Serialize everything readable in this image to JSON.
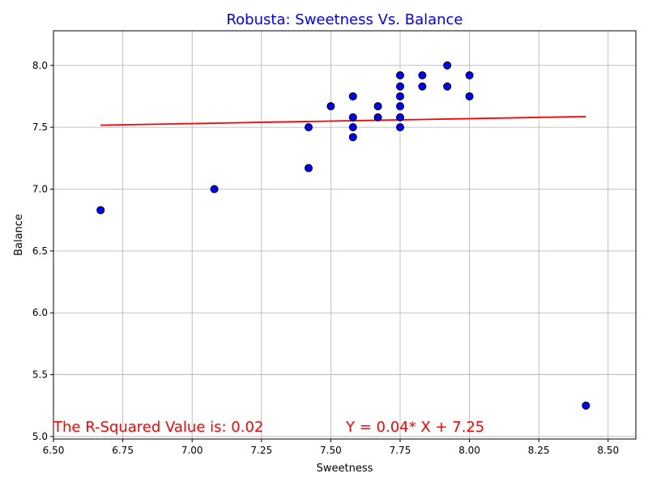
{
  "chart_data": {
    "type": "scatter",
    "title": "Robusta: Sweetness Vs. Balance",
    "xlabel": "Sweetness",
    "ylabel": "Balance",
    "xlim": [
      6.5,
      8.6
    ],
    "ylim": [
      4.98,
      8.28
    ],
    "x_ticks": [
      6.5,
      6.75,
      7.0,
      7.25,
      7.5,
      7.75,
      8.0,
      8.25,
      8.5
    ],
    "x_tick_labels": [
      "6.50",
      "6.75",
      "7.00",
      "7.25",
      "7.50",
      "7.75",
      "8.00",
      "8.25",
      "8.50"
    ],
    "y_ticks": [
      5.0,
      5.5,
      6.0,
      6.5,
      7.0,
      7.5,
      8.0
    ],
    "y_tick_labels": [
      "5.0",
      "5.5",
      "6.0",
      "6.5",
      "7.0",
      "7.5",
      "8.0"
    ],
    "grid": true,
    "points": [
      {
        "x": 6.67,
        "y": 6.83
      },
      {
        "x": 7.08,
        "y": 7.0
      },
      {
        "x": 7.42,
        "y": 7.17
      },
      {
        "x": 7.42,
        "y": 7.5
      },
      {
        "x": 7.5,
        "y": 7.67
      },
      {
        "x": 7.58,
        "y": 7.75
      },
      {
        "x": 7.58,
        "y": 7.58
      },
      {
        "x": 7.58,
        "y": 7.5
      },
      {
        "x": 7.58,
        "y": 7.42
      },
      {
        "x": 7.67,
        "y": 7.67
      },
      {
        "x": 7.67,
        "y": 7.58
      },
      {
        "x": 7.75,
        "y": 7.92
      },
      {
        "x": 7.75,
        "y": 7.83
      },
      {
        "x": 7.75,
        "y": 7.75
      },
      {
        "x": 7.75,
        "y": 7.67
      },
      {
        "x": 7.75,
        "y": 7.58
      },
      {
        "x": 7.75,
        "y": 7.5
      },
      {
        "x": 7.83,
        "y": 7.92
      },
      {
        "x": 7.83,
        "y": 7.83
      },
      {
        "x": 7.92,
        "y": 8.0
      },
      {
        "x": 7.92,
        "y": 7.83
      },
      {
        "x": 8.0,
        "y": 7.92
      },
      {
        "x": 8.0,
        "y": 7.75
      },
      {
        "x": 8.42,
        "y": 5.25
      }
    ],
    "regression": {
      "slope": 0.04,
      "intercept": 7.25,
      "x_range": [
        6.67,
        8.42
      ]
    },
    "annotations": {
      "r_squared": "The R-Squared Value is: 0.02",
      "equation": "Y = 0.04* X + 7.25"
    },
    "colors": {
      "title": "#0000ff",
      "point_fill": "#0000ff",
      "point_edge": "#000000",
      "line": "#ff0000",
      "annotation": "#ff0000",
      "grid": "#b0b0b0"
    }
  }
}
